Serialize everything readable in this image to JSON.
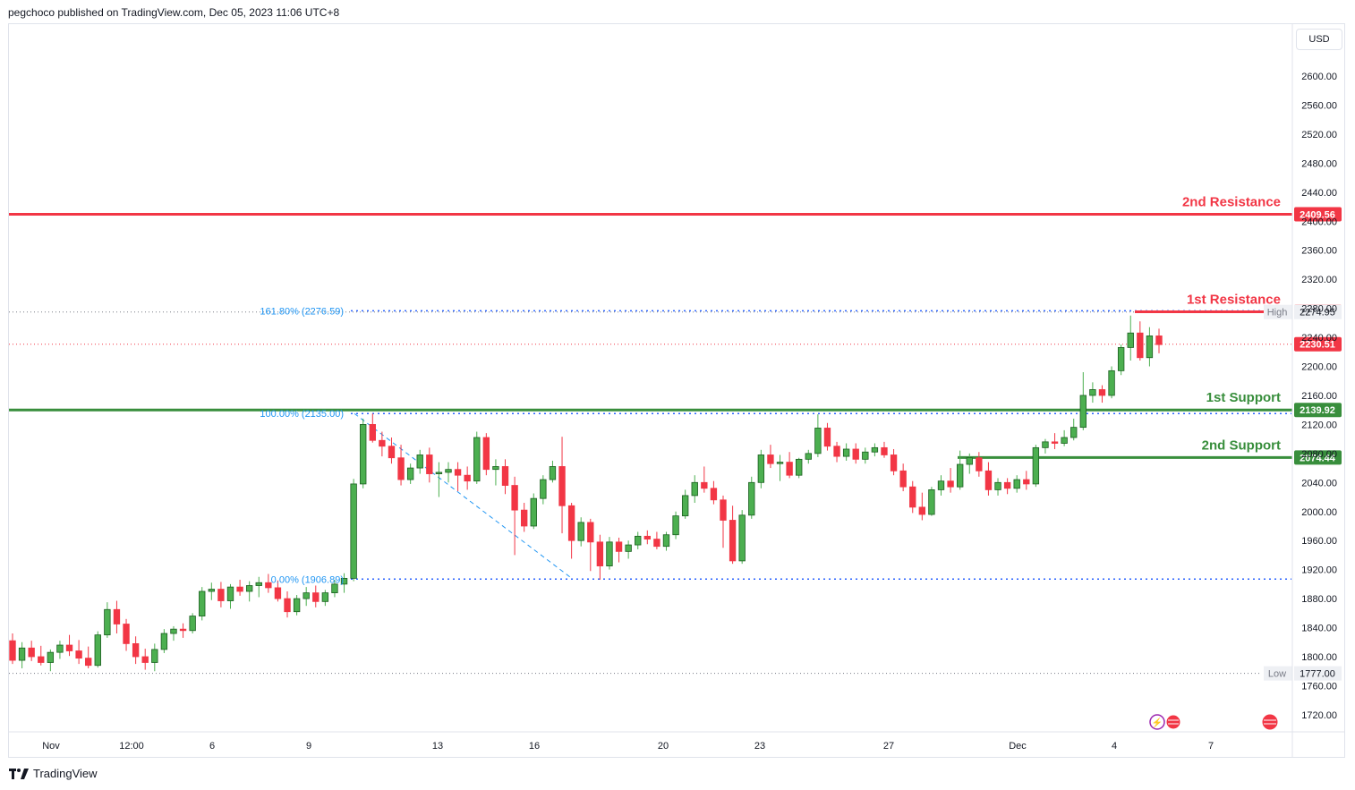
{
  "header": {
    "published_by": "pegchoco published on TradingView.com, Dec 05, 2023 11:06 UTC+8"
  },
  "footer": {
    "brand": "TradingView"
  },
  "currency_button": "USD",
  "colors": {
    "up": "#4caf50",
    "down": "#f23645",
    "resistance": "#f23645",
    "support": "#388e3c",
    "fib": "#2962ff",
    "text": "#131722",
    "grid": "#e0e3eb"
  },
  "chart_data": {
    "type": "candlestick",
    "y_axis": {
      "min": 1700,
      "max": 2640,
      "ticks": [
        2600,
        2560,
        2520,
        2480,
        2440,
        2400,
        2360,
        2320,
        2280,
        2240,
        2200,
        2160,
        2120,
        2080,
        2040,
        2000,
        1960,
        1920,
        1880,
        1840,
        1800,
        1760,
        1720
      ],
      "tick_labels": [
        "2600.00",
        "2560.00",
        "2520.00",
        "2480.00",
        "2440.00",
        "2400.00",
        "2360.00",
        "2320.00",
        "2280.00",
        "2240.00",
        "2200.00",
        "2160.00",
        "2120.00",
        "2080.00",
        "2040.00",
        "2000.00",
        "1960.00",
        "1920.00",
        "1880.00",
        "1840.00",
        "1800.00",
        "1760.00",
        "1720.00"
      ]
    },
    "x_axis": {
      "labels": [
        "Nov",
        "12:00",
        "6",
        "9",
        "13",
        "16",
        "20",
        "23",
        "27",
        "Dec",
        "4",
        "7"
      ]
    },
    "levels": [
      {
        "name": "2nd Resistance",
        "value": 2409.56,
        "label": "2409.56",
        "type": "resistance"
      },
      {
        "name": "1st Resistance",
        "value": 2275.14,
        "label": "2275.14",
        "type": "resistance"
      },
      {
        "name": "1st Support",
        "value": 2139.92,
        "label": "2139.92",
        "type": "support"
      },
      {
        "name": "2nd Support",
        "value": 2074.44,
        "label": "2074.44",
        "type": "support"
      }
    ],
    "fib_levels": [
      {
        "label": "161.80% (2276.59)",
        "value": 2276.59
      },
      {
        "label": "100.00% (2135.00)",
        "value": 2135.0
      },
      {
        "label": "0.00% (1906.89)",
        "value": 1906.89
      }
    ],
    "markers": [
      {
        "name": "High",
        "value": 2274.95,
        "label": "2274.95"
      },
      {
        "name": "Low",
        "value": 1777.0,
        "label": "1777.00"
      }
    ],
    "last_price": {
      "value": 2230.51,
      "label": "2230.51"
    },
    "candles": [
      [
        1822,
        1832,
        1790,
        1795
      ],
      [
        1795,
        1820,
        1784,
        1812
      ],
      [
        1812,
        1822,
        1794,
        1800
      ],
      [
        1800,
        1815,
        1788,
        1792
      ],
      [
        1792,
        1810,
        1780,
        1806
      ],
      [
        1806,
        1822,
        1797,
        1816
      ],
      [
        1816,
        1830,
        1801,
        1808
      ],
      [
        1808,
        1823,
        1790,
        1798
      ],
      [
        1798,
        1814,
        1784,
        1788
      ],
      [
        1788,
        1835,
        1785,
        1830
      ],
      [
        1830,
        1875,
        1826,
        1865
      ],
      [
        1865,
        1877,
        1832,
        1845
      ],
      [
        1845,
        1852,
        1808,
        1818
      ],
      [
        1818,
        1828,
        1790,
        1800
      ],
      [
        1800,
        1811,
        1782,
        1792
      ],
      [
        1792,
        1818,
        1780,
        1810
      ],
      [
        1810,
        1838,
        1805,
        1832
      ],
      [
        1832,
        1842,
        1822,
        1838
      ],
      [
        1838,
        1846,
        1826,
        1836
      ],
      [
        1836,
        1860,
        1832,
        1856
      ],
      [
        1856,
        1896,
        1850,
        1890
      ],
      [
        1890,
        1902,
        1878,
        1893
      ],
      [
        1893,
        1903,
        1868,
        1877
      ],
      [
        1877,
        1900,
        1866,
        1896
      ],
      [
        1896,
        1906,
        1884,
        1890
      ],
      [
        1890,
        1904,
        1876,
        1898
      ],
      [
        1898,
        1910,
        1882,
        1902
      ],
      [
        1902,
        1914,
        1888,
        1895
      ],
      [
        1895,
        1905,
        1876,
        1880
      ],
      [
        1880,
        1890,
        1854,
        1862
      ],
      [
        1862,
        1885,
        1857,
        1880
      ],
      [
        1880,
        1896,
        1870,
        1888
      ],
      [
        1888,
        1898,
        1868,
        1876
      ],
      [
        1876,
        1892,
        1870,
        1888
      ],
      [
        1888,
        1906,
        1882,
        1900
      ],
      [
        1900,
        1915,
        1888,
        1908
      ],
      [
        1908,
        2045,
        1904,
        2038
      ],
      [
        2038,
        2128,
        2032,
        2120
      ],
      [
        2120,
        2135,
        2095,
        2098
      ],
      [
        2098,
        2110,
        2076,
        2090
      ],
      [
        2090,
        2102,
        2066,
        2074
      ],
      [
        2074,
        2092,
        2036,
        2044
      ],
      [
        2044,
        2066,
        2038,
        2060
      ],
      [
        2060,
        2085,
        2052,
        2078
      ],
      [
        2078,
        2088,
        2040,
        2052
      ],
      [
        2052,
        2068,
        2020,
        2054
      ],
      [
        2054,
        2068,
        2040,
        2058
      ],
      [
        2058,
        2068,
        2028,
        2050
      ],
      [
        2050,
        2062,
        2030,
        2042
      ],
      [
        2042,
        2110,
        2038,
        2102
      ],
      [
        2102,
        2108,
        2050,
        2058
      ],
      [
        2058,
        2072,
        2036,
        2062
      ],
      [
        2062,
        2072,
        2024,
        2036
      ],
      [
        2036,
        2048,
        1940,
        2002
      ],
      [
        2002,
        2012,
        1972,
        1980
      ],
      [
        1980,
        2025,
        1976,
        2018
      ],
      [
        2018,
        2050,
        2010,
        2044
      ],
      [
        2044,
        2070,
        2040,
        2062
      ],
      [
        2062,
        2103,
        1970,
        2008
      ],
      [
        2008,
        2012,
        1935,
        1960
      ],
      [
        1960,
        1992,
        1952,
        1985
      ],
      [
        1985,
        1990,
        1918,
        1958
      ],
      [
        1958,
        1968,
        1906,
        1925
      ],
      [
        1925,
        1965,
        1920,
        1958
      ],
      [
        1958,
        1964,
        1930,
        1945
      ],
      [
        1945,
        1960,
        1935,
        1954
      ],
      [
        1954,
        1972,
        1948,
        1966
      ],
      [
        1966,
        1974,
        1955,
        1962
      ],
      [
        1962,
        1972,
        1948,
        1952
      ],
      [
        1952,
        1972,
        1946,
        1968
      ],
      [
        1968,
        2000,
        1962,
        1994
      ],
      [
        1994,
        2030,
        1990,
        2022
      ],
      [
        2022,
        2050,
        2012,
        2040
      ],
      [
        2040,
        2062,
        2026,
        2032
      ],
      [
        2032,
        2042,
        2010,
        2016
      ],
      [
        2016,
        2022,
        1950,
        1988
      ],
      [
        1988,
        2008,
        1928,
        1932
      ],
      [
        1932,
        2002,
        1928,
        1995
      ],
      [
        1995,
        2048,
        1990,
        2040
      ],
      [
        2040,
        2085,
        2032,
        2078
      ],
      [
        2078,
        2092,
        2060,
        2066
      ],
      [
        2066,
        2078,
        2042,
        2068
      ],
      [
        2068,
        2082,
        2046,
        2050
      ],
      [
        2050,
        2074,
        2046,
        2072
      ],
      [
        2072,
        2085,
        2066,
        2080
      ],
      [
        2080,
        2134,
        2075,
        2115
      ],
      [
        2115,
        2122,
        2084,
        2090
      ],
      [
        2090,
        2096,
        2068,
        2076
      ],
      [
        2076,
        2094,
        2070,
        2086
      ],
      [
        2086,
        2094,
        2066,
        2072
      ],
      [
        2072,
        2088,
        2066,
        2082
      ],
      [
        2082,
        2094,
        2076,
        2088
      ],
      [
        2088,
        2096,
        2074,
        2078
      ],
      [
        2078,
        2086,
        2050,
        2056
      ],
      [
        2056,
        2066,
        2028,
        2034
      ],
      [
        2034,
        2042,
        1998,
        2006
      ],
      [
        2006,
        2026,
        1988,
        1996
      ],
      [
        1996,
        2034,
        1994,
        2030
      ],
      [
        2030,
        2050,
        2022,
        2042
      ],
      [
        2042,
        2060,
        2026,
        2034
      ],
      [
        2034,
        2084,
        2030,
        2065
      ],
      [
        2065,
        2080,
        2052,
        2074
      ],
      [
        2074,
        2082,
        2048,
        2056
      ],
      [
        2056,
        2068,
        2022,
        2030
      ],
      [
        2030,
        2046,
        2022,
        2040
      ],
      [
        2040,
        2046,
        2024,
        2032
      ],
      [
        2032,
        2050,
        2026,
        2044
      ],
      [
        2044,
        2056,
        2030,
        2038
      ],
      [
        2038,
        2092,
        2034,
        2088
      ],
      [
        2088,
        2100,
        2080,
        2096
      ],
      [
        2096,
        2108,
        2086,
        2094
      ],
      [
        2094,
        2112,
        2090,
        2102
      ],
      [
        2102,
        2128,
        2098,
        2116
      ],
      [
        2116,
        2192,
        2112,
        2160
      ],
      [
        2160,
        2178,
        2150,
        2168
      ],
      [
        2168,
        2174,
        2150,
        2160
      ],
      [
        2160,
        2200,
        2156,
        2194
      ],
      [
        2194,
        2230,
        2188,
        2226
      ],
      [
        2226,
        2270,
        2208,
        2246
      ],
      [
        2246,
        2262,
        2208,
        2212
      ],
      [
        2212,
        2254,
        2200,
        2242
      ],
      [
        2242,
        2252,
        2218,
        2230
      ]
    ]
  }
}
